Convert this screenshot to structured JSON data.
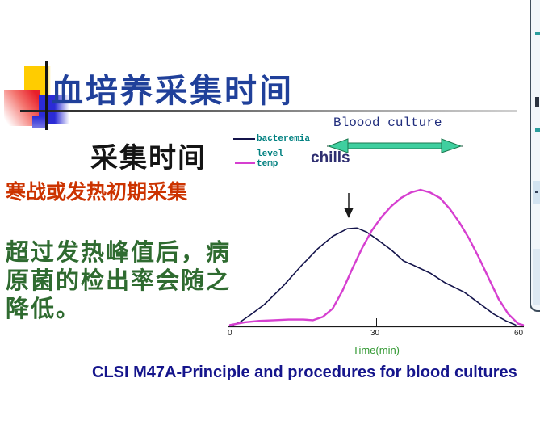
{
  "slide": {
    "title": "血培养采集时间",
    "section_heading": "采集时间",
    "red_note": "寒战或发热初期采集",
    "green_note": "超过发热峰值后，病原菌的检出率会随之降低。",
    "footer": "CLSI M47A-Principle and procedures for blood cultures"
  },
  "chart_data": {
    "type": "line",
    "title": "Bloood culture",
    "xlabel": "Time(min)",
    "ylabel": "",
    "xlim": [
      0,
      60
    ],
    "x_ticks": [
      "0",
      "30",
      "60"
    ],
    "y_axis_shown": false,
    "grid": false,
    "legend": {
      "position": "top-left",
      "entries": [
        {
          "label": "bacteremia\nlevel",
          "color": "#14144b"
        },
        {
          "label": "temp",
          "color": "#d63fd0"
        }
      ]
    },
    "annotations": {
      "header": "Bloood culture",
      "chills_label": "chills",
      "double_arrow": "green double-headed horizontal arrow spanning blood-culture window",
      "peak_arrow": "black downward arrow above bacteremia peak",
      "peak_arrow_x_min": 24
    },
    "series": [
      {
        "name": "bacteremia level",
        "color": "#14144b",
        "y_units": "relative level 0-1 (no y-axis shown)",
        "points": [
          [
            0,
            0
          ],
          [
            2,
            0.03
          ],
          [
            4,
            0.08
          ],
          [
            7,
            0.16
          ],
          [
            11,
            0.3
          ],
          [
            14.5,
            0.44
          ],
          [
            18,
            0.57
          ],
          [
            21,
            0.66
          ],
          [
            24,
            0.715
          ],
          [
            26,
            0.72
          ],
          [
            28,
            0.69
          ],
          [
            30,
            0.64
          ],
          [
            33,
            0.56
          ],
          [
            35.5,
            0.48
          ],
          [
            38,
            0.44
          ],
          [
            41,
            0.39
          ],
          [
            44,
            0.32
          ],
          [
            48,
            0.25
          ],
          [
            51,
            0.17
          ],
          [
            54,
            0.09
          ],
          [
            56.5,
            0.04
          ],
          [
            58.5,
            0.01
          ]
        ]
      },
      {
        "name": "temp",
        "color": "#d63fd0",
        "y_units": "relative level 0-1 (no y-axis shown)",
        "points": [
          [
            0,
            0.01
          ],
          [
            3,
            0.03
          ],
          [
            6,
            0.04
          ],
          [
            9,
            0.045
          ],
          [
            12,
            0.05
          ],
          [
            15,
            0.05
          ],
          [
            17,
            0.045
          ],
          [
            19,
            0.07
          ],
          [
            21,
            0.13
          ],
          [
            23,
            0.26
          ],
          [
            25,
            0.42
          ],
          [
            27,
            0.57
          ],
          [
            29,
            0.7
          ],
          [
            31,
            0.8
          ],
          [
            33,
            0.88
          ],
          [
            35,
            0.94
          ],
          [
            37,
            0.98
          ],
          [
            39,
            1
          ],
          [
            41,
            0.98
          ],
          [
            43,
            0.94
          ],
          [
            45,
            0.86
          ],
          [
            47,
            0.76
          ],
          [
            49,
            0.64
          ],
          [
            51,
            0.5
          ],
          [
            53,
            0.35
          ],
          [
            55,
            0.2
          ],
          [
            57,
            0.09
          ],
          [
            59,
            0.02
          ],
          [
            60,
            0.01
          ]
        ]
      }
    ]
  },
  "colors": {
    "title_blue": "#20409a",
    "red_note": "#cc3300",
    "green_note": "#2f6b30",
    "legend_text": "#008080",
    "footer_navy": "#15158c",
    "time_label_green": "#339933",
    "arrow_fill": "#3fcf9f",
    "arrow_outline": "#1b7a50"
  }
}
